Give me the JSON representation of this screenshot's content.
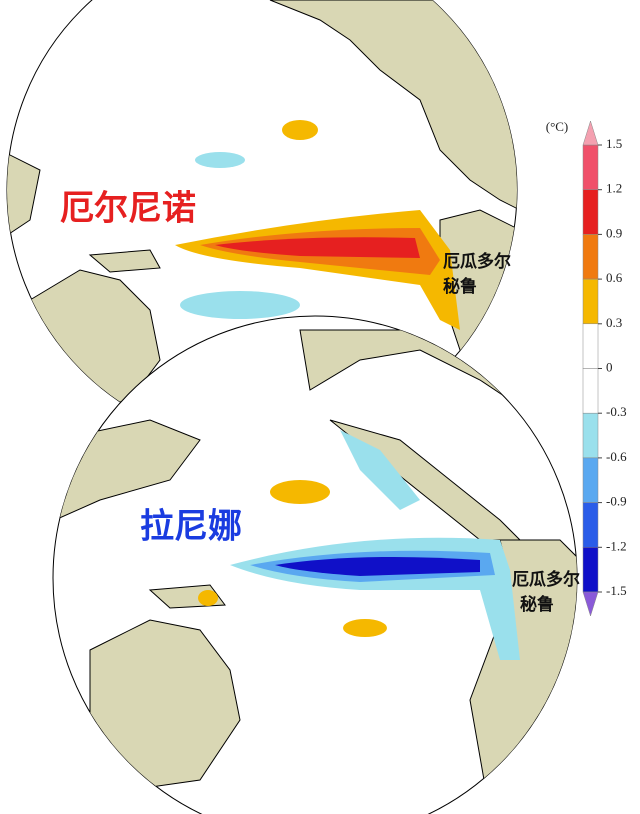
{
  "el_nino": {
    "title": "厄尔尼诺",
    "labels": [
      "厄瓜多尔",
      "秘鲁"
    ]
  },
  "la_nina": {
    "title": "拉尼娜",
    "labels": [
      "厄瓜多尔",
      "秘鲁"
    ]
  },
  "colorbar": {
    "unit": "(°C)",
    "lim": [
      -1.5,
      1.5
    ],
    "ticks": [
      1.5,
      1.2,
      0.9,
      0.6,
      0.3,
      0,
      -0.3,
      -0.6,
      -0.9,
      -1.2,
      -1.5
    ],
    "colors": [
      "#f4a0b0",
      "#f0506a",
      "#e62020",
      "#f07a10",
      "#f5b800",
      "#ffffff",
      "#ffffff",
      "#9ae0ec",
      "#5aa8f0",
      "#2a5ce8",
      "#1010c8",
      "#8a5ad8"
    ]
  }
}
